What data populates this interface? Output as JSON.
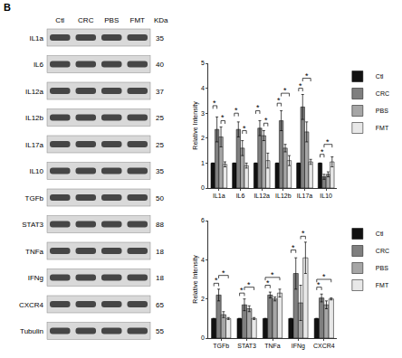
{
  "panel_label": "B",
  "blot": {
    "lanes": [
      "Ctl",
      "CRC",
      "PBS",
      "FMT"
    ],
    "unit_label": "KDa",
    "rows": [
      {
        "protein": "IL1a",
        "kda": 35
      },
      {
        "protein": "IL6",
        "kda": 40
      },
      {
        "protein": "IL12a",
        "kda": 37
      },
      {
        "protein": "IL12b",
        "kda": 25
      },
      {
        "protein": "IL17a",
        "kda": 25
      },
      {
        "protein": "IL10",
        "kda": 35
      },
      {
        "protein": "TGFb",
        "kda": 50
      },
      {
        "protein": "STAT3",
        "kda": 88
      },
      {
        "protein": "TNFa",
        "kda": 18
      },
      {
        "protein": "IFNg",
        "kda": 18
      },
      {
        "protein": "CXCR4",
        "kda": 65
      },
      {
        "protein": "Tubulin",
        "kda": 55
      }
    ]
  },
  "chart_data": [
    {
      "type": "bar",
      "categories": [
        "IL1a",
        "IL6",
        "IL12a",
        "IL12b",
        "IL17a",
        "IL10"
      ],
      "ylabel": "Relative Intensity",
      "ylim": [
        0,
        5
      ],
      "yticks": [
        0,
        1,
        2,
        3,
        4,
        5
      ],
      "legend": "right",
      "series": [
        {
          "name": "Ctl",
          "color": "#111111",
          "values": [
            1,
            1,
            1,
            1,
            1,
            1
          ],
          "errors": [
            0,
            0,
            0,
            0,
            0,
            0
          ]
        },
        {
          "name": "CRC",
          "color": "#7f7f7f",
          "values": [
            2.35,
            2.35,
            2.4,
            2.7,
            3.25,
            0.45
          ],
          "errors": [
            0.5,
            0.3,
            0.3,
            0.4,
            0.5,
            0.1
          ]
        },
        {
          "name": "PBS",
          "color": "#a6a6a6",
          "values": [
            2.05,
            1.6,
            2.1,
            1.6,
            2.25,
            0.55
          ],
          "errors": [
            0.4,
            0.3,
            0.2,
            0.15,
            0.4,
            0.1
          ]
        },
        {
          "name": "FMT",
          "color": "#e8e8e8",
          "values": [
            0.95,
            0.9,
            1.1,
            1.1,
            1.05,
            1.05
          ],
          "errors": [
            0.1,
            0.1,
            0.3,
            0.2,
            0.1,
            0.2
          ]
        }
      ],
      "significance": [
        {
          "category": "IL1a",
          "from": "Ctl",
          "to": "CRC",
          "y": 3.3,
          "label": "*"
        },
        {
          "category": "IL1a",
          "from": "PBS",
          "to": "FMT",
          "y": 2.7,
          "label": "*"
        },
        {
          "category": "IL6",
          "from": "Ctl",
          "to": "CRC",
          "y": 3.0,
          "label": "*"
        },
        {
          "category": "IL6",
          "from": "PBS",
          "to": "FMT",
          "y": 2.3,
          "label": "*"
        },
        {
          "category": "IL12a",
          "from": "Ctl",
          "to": "CRC",
          "y": 3.1,
          "label": "*"
        },
        {
          "category": "IL12a",
          "from": "PBS",
          "to": "FMT",
          "y": 2.6,
          "label": "*"
        },
        {
          "category": "IL12b",
          "from": "Ctl",
          "to": "CRC",
          "y": 3.4,
          "label": "*"
        },
        {
          "category": "IL12b",
          "from": "CRC",
          "to": "FMT",
          "y": 3.8,
          "label": "*"
        },
        {
          "category": "IL17a",
          "from": "Ctl",
          "to": "CRC",
          "y": 4.0,
          "label": "*"
        },
        {
          "category": "IL17a",
          "from": "CRC",
          "to": "FMT",
          "y": 4.4,
          "label": "*"
        },
        {
          "category": "IL10",
          "from": "Ctl",
          "to": "CRC",
          "y": 1.35,
          "label": "*"
        },
        {
          "category": "IL10",
          "from": "CRC",
          "to": "FMT",
          "y": 1.75,
          "label": "*"
        }
      ]
    },
    {
      "type": "bar",
      "categories": [
        "TGFb",
        "STAT3",
        "TNFa",
        "IFNg",
        "CXCR4"
      ],
      "ylabel": "Relative Intensity",
      "ylim": [
        0,
        6
      ],
      "yticks": [
        0,
        2,
        4,
        6
      ],
      "legend": "right",
      "series": [
        {
          "name": "Ctl",
          "color": "#111111",
          "values": [
            1,
            1,
            1,
            1,
            1
          ],
          "errors": [
            0,
            0,
            0,
            0,
            0
          ]
        },
        {
          "name": "CRC",
          "color": "#7f7f7f",
          "values": [
            2.2,
            1.7,
            2.2,
            3.3,
            2.05
          ],
          "errors": [
            0.3,
            0.3,
            0.15,
            0.8,
            0.2
          ]
        },
        {
          "name": "PBS",
          "color": "#a6a6a6",
          "values": [
            1.2,
            1.5,
            2.0,
            1.8,
            1.7
          ],
          "errors": [
            0.15,
            0.15,
            0.1,
            0.9,
            0.2
          ]
        },
        {
          "name": "FMT",
          "color": "#e8e8e8",
          "values": [
            1.0,
            1.0,
            2.3,
            4.1,
            2.0
          ],
          "errors": [
            0.05,
            0.05,
            0.2,
            0.8,
            0.05
          ]
        }
      ],
      "significance": [
        {
          "category": "TGFb",
          "from": "Ctl",
          "to": "CRC",
          "y": 2.8,
          "label": "*"
        },
        {
          "category": "TGFb",
          "from": "CRC",
          "to": "FMT",
          "y": 3.2,
          "label": "*"
        },
        {
          "category": "STAT3",
          "from": "Ctl",
          "to": "CRC",
          "y": 2.3,
          "label": "*"
        },
        {
          "category": "STAT3",
          "from": "CRC",
          "to": "FMT",
          "y": 2.6,
          "label": "*"
        },
        {
          "category": "TNFa",
          "from": "Ctl",
          "to": "CRC",
          "y": 2.7,
          "label": "*"
        },
        {
          "category": "TNFa",
          "from": "Ctl",
          "to": "FMT",
          "y": 3.1,
          "label": "*"
        },
        {
          "category": "IFNg",
          "from": "Ctl",
          "to": "CRC",
          "y": 4.5,
          "label": "*"
        },
        {
          "category": "IFNg",
          "from": "PBS",
          "to": "FMT",
          "y": 5.2,
          "label": "*"
        },
        {
          "category": "CXCR4",
          "from": "Ctl",
          "to": "CRC",
          "y": 2.6,
          "label": "*"
        },
        {
          "category": "CXCR4",
          "from": "Ctl",
          "to": "FMT",
          "y": 3.0,
          "label": "*"
        }
      ]
    }
  ]
}
